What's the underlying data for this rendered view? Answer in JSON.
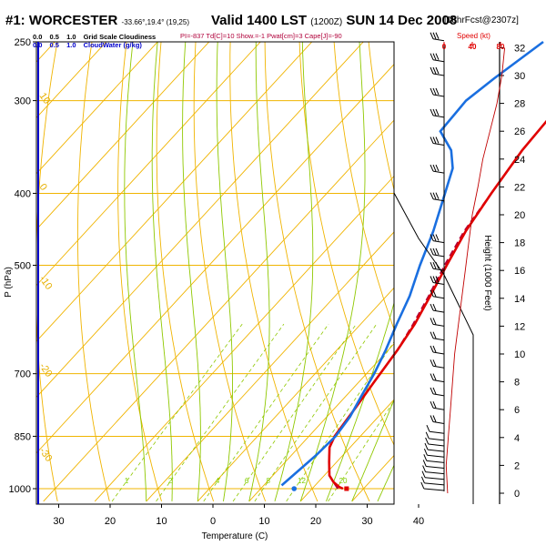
{
  "header": {
    "title": "#1: WORCESTER",
    "coords": "-33.66°,19.4° (19,25)",
    "valid_label": "Valid 1400 LST",
    "valid_utc": "(1200Z)",
    "valid_date": "SUN 14 Dec 2008",
    "run": "[18hrFcst@2307z]"
  },
  "legend": {
    "cloud_row": [
      "0.0",
      "0.5",
      "1.0",
      "Grid Scale Cloudiness"
    ],
    "water_row": [
      "0.0",
      "0.5",
      "1.0",
      "CloudWater (g/kg)"
    ]
  },
  "params": "PI=-837  Td[C]=10  Show.=-1  Pwat[cm]=3  Cape[J]=-90",
  "speed": {
    "title": "Speed (kt)",
    "ticks": [
      "0",
      "40",
      "80"
    ]
  },
  "colors": {
    "temperature": "#e00000",
    "dewpoint": "#b0003a",
    "cloudwater": "#1a6fe0",
    "isotherm": "#f0b400",
    "dry_adiabat": "#f0b400",
    "moist_adiabat": "#8fc800",
    "mixing_ratio": "#8fc800",
    "isobar": "#f0b400",
    "wind_speed": "#c00000"
  },
  "chart_data": {
    "type": "line",
    "title": "#1: WORCESTER",
    "xlabel": "Temperature (C)",
    "ylabel": "P (hPa)",
    "ylabel_right": "Height (1000 Feet)",
    "x_ticks": [
      "30",
      "20",
      "10",
      "0",
      "10",
      "20",
      "30",
      "40"
    ],
    "x_tick_values": [
      -30,
      -20,
      -10,
      0,
      10,
      20,
      30,
      40
    ],
    "xlim": [
      -34,
      50
    ],
    "pressure_ticks": [
      250,
      300,
      400,
      500,
      700,
      850,
      1000
    ],
    "pressure_tick_labels": [
      "250",
      "300",
      "400",
      "500",
      "700",
      "850",
      "1000"
    ],
    "ylim": [
      1040,
      250
    ],
    "height_ticks": [
      "0",
      "2",
      "4",
      "6",
      "8",
      "10",
      "12",
      "14",
      "16",
      "18",
      "20",
      "22",
      "24",
      "26",
      "28",
      "30",
      "32"
    ],
    "isotherm_labels": [
      "-10",
      "0",
      "10",
      "20",
      "30"
    ],
    "isotherm_label_values": [
      -10,
      0,
      10,
      20,
      30
    ],
    "dry_adiabat_labels": [
      "10",
      "0",
      "-10",
      "-20",
      "-30"
    ],
    "mixing_ratio_labels": [
      "1",
      "2",
      "4",
      "6",
      "8",
      "12",
      "20"
    ],
    "mixing_ratio_values": [
      1,
      2,
      4,
      6,
      8,
      12,
      20
    ],
    "series": [
      {
        "name": "Temperature",
        "points": [
          [
            26,
            1000
          ],
          [
            25,
            995
          ],
          [
            23,
            980
          ],
          [
            21,
            960
          ],
          [
            18.5,
            920
          ],
          [
            16,
            880
          ],
          [
            15,
            850
          ],
          [
            14,
            780
          ],
          [
            13,
            720
          ],
          [
            11.8,
            650
          ],
          [
            10.5,
            600
          ],
          [
            8.5,
            550
          ],
          [
            6.2,
            500
          ],
          [
            3.8,
            450
          ],
          [
            2,
            400
          ],
          [
            0.3,
            350
          ],
          [
            -0.5,
            300
          ],
          [
            -1,
            250
          ]
        ]
      },
      {
        "name": "Dewpoint",
        "points": [
          [
            25,
            1000
          ],
          [
            23,
            980
          ],
          [
            21,
            960
          ],
          [
            18.5,
            920
          ],
          [
            16,
            880
          ],
          [
            15,
            850
          ],
          [
            14,
            780
          ],
          [
            13,
            720
          ],
          [
            11.8,
            650
          ],
          [
            10.2,
            600
          ],
          [
            8.2,
            550
          ],
          [
            5.8,
            500
          ],
          [
            3.5,
            450
          ],
          [
            2,
            400
          ],
          [
            0.3,
            350
          ],
          [
            -0.5,
            300
          ],
          [
            -1,
            250
          ]
        ]
      },
      {
        "name": "CloudWater",
        "points": [
          [
            13.5,
            990
          ],
          [
            14.8,
            900
          ],
          [
            15.2,
            850
          ],
          [
            14.5,
            800
          ],
          [
            13,
            750
          ],
          [
            11.5,
            700
          ],
          [
            9.5,
            650
          ],
          [
            7,
            600
          ],
          [
            4.5,
            550
          ],
          [
            1,
            500
          ],
          [
            -2.5,
            450
          ],
          [
            -7,
            400
          ],
          [
            -10,
            370
          ],
          [
            -13.5,
            350
          ],
          [
            -19,
            330
          ],
          [
            -19.5,
            300
          ],
          [
            -18,
            280
          ],
          [
            -15,
            250
          ]
        ]
      }
    ],
    "surface_markers": [
      {
        "name": "surface temperature",
        "t": 26.7,
        "p": 1000
      },
      {
        "name": "surface dewpoint",
        "t": 16.5,
        "p": 1000
      }
    ],
    "wind_speed_profile": [
      [
        5,
        0
      ],
      [
        4,
        1
      ],
      [
        3,
        2
      ],
      [
        6,
        4
      ],
      [
        9,
        6
      ],
      [
        12,
        8
      ],
      [
        15,
        10
      ],
      [
        20,
        12
      ],
      [
        25,
        14
      ],
      [
        30,
        16
      ],
      [
        35,
        18
      ],
      [
        40,
        20
      ],
      [
        48,
        22
      ],
      [
        55,
        24
      ],
      [
        65,
        26
      ],
      [
        75,
        28
      ],
      [
        82,
        30
      ],
      [
        86,
        32
      ]
    ],
    "wind_barb_heights_kft": [
      0.2,
      0.6,
      1.0,
      1.4,
      1.8,
      2.2,
      2.6,
      3.0,
      3.4,
      3.8,
      4.3,
      5.0,
      6.0,
      7.0,
      8.0,
      9.0,
      10.0,
      11.0,
      12.0,
      13.0,
      14.0,
      15.0,
      16.0,
      17.0,
      18.0,
      21.0,
      23.0,
      25.0,
      27.0,
      28.5,
      30.0,
      31.0,
      32.5
    ]
  }
}
